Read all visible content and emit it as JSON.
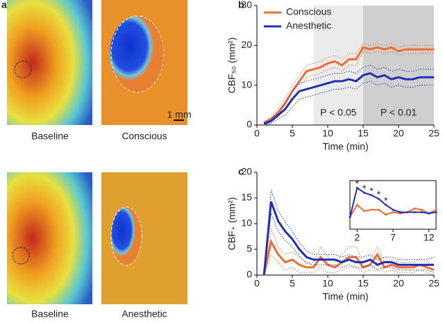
{
  "images": {
    "panel_label": "a",
    "labels": [
      "Baseline",
      "Conscious",
      "Baseline",
      "Anesthetic"
    ],
    "scale_bar": "1 mm"
  },
  "chart_data": [
    {
      "type": "line",
      "panel_label": "b",
      "xlabel": "Time (min)",
      "ylabel": "CBF₅₀ (mm²)",
      "xlim": [
        0,
        25
      ],
      "ylim": [
        0,
        30
      ],
      "xticks": [
        0,
        5,
        10,
        15,
        20,
        25
      ],
      "yticks": [
        0,
        10,
        20,
        30
      ],
      "legend": "upper left",
      "shaded_regions": [
        {
          "xlim": [
            8,
            15
          ],
          "color": "#ebebeb"
        },
        {
          "xlim": [
            15,
            25
          ],
          "color": "#cfcfcf"
        }
      ],
      "annotations": [
        {
          "x": 11.5,
          "y": 3,
          "text": "P < 0.05"
        },
        {
          "x": 20,
          "y": 3,
          "text": "P < 0.01"
        }
      ],
      "x": [
        1,
        2,
        3,
        4,
        5,
        6,
        7,
        8,
        9,
        10,
        11,
        12,
        13,
        14,
        15,
        16,
        17,
        18,
        19,
        20,
        21,
        22,
        23,
        24,
        25
      ],
      "series": [
        {
          "name": "Conscious",
          "color": "#f26b2f",
          "values": [
            0.5,
            1.5,
            3,
            5.5,
            8.5,
            11,
            13.5,
            14,
            14.5,
            15.5,
            16,
            15,
            16.5,
            16.5,
            19.5,
            19,
            19.5,
            19,
            19.5,
            18.5,
            19,
            19,
            19,
            19,
            19
          ],
          "error": [
            0.3,
            0.6,
            1,
            1.3,
            1.5,
            1.5,
            1.5,
            1.5,
            1.5,
            1.5,
            1.5,
            1.5,
            1.5,
            1.5,
            1,
            1,
            1,
            1,
            1,
            1,
            1,
            1,
            1,
            1,
            1
          ]
        },
        {
          "name": "Anesthetic",
          "color": "#1f2fb5",
          "values": [
            0.3,
            1,
            2.5,
            4,
            6.5,
            8.5,
            9,
            9.5,
            10,
            10.5,
            11,
            11,
            11.5,
            11,
            12.5,
            13,
            12,
            12.5,
            11.5,
            12,
            11.5,
            11.5,
            12,
            12,
            12
          ],
          "error": [
            0.3,
            0.6,
            1,
            1.5,
            2,
            2,
            2,
            2,
            2,
            2,
            2,
            2,
            2,
            2,
            2,
            2,
            2,
            2,
            2,
            2,
            2,
            2,
            2,
            2,
            2
          ]
        }
      ]
    },
    {
      "type": "line",
      "panel_label": "c",
      "xlabel": "Time (min)",
      "ylabel": "CBF₊ (mm²)",
      "xlim": [
        0,
        25
      ],
      "ylim": [
        0,
        20
      ],
      "xticks": [
        0,
        5,
        10,
        15,
        20,
        25
      ],
      "yticks": [
        0,
        5,
        10,
        15,
        20
      ],
      "x": [
        1,
        2,
        3,
        4,
        5,
        6,
        7,
        8,
        9,
        10,
        11,
        12,
        13,
        14,
        15,
        16,
        17,
        18,
        19,
        20,
        21,
        22,
        23,
        24,
        25
      ],
      "series": [
        {
          "name": "Conscious",
          "color": "#f26b2f",
          "values": [
            0,
            6.5,
            4,
            2.5,
            3,
            2,
            1.5,
            1.5,
            3.5,
            2,
            1.5,
            2.5,
            3.5,
            3.5,
            1.5,
            2,
            4,
            1.5,
            2,
            1.5,
            1.5,
            1.5,
            2,
            1.5,
            1
          ],
          "error": [
            0,
            2.5,
            1.5,
            1.5,
            1.5,
            1.5,
            1,
            1,
            2,
            1.5,
            1,
            1.5,
            2,
            2,
            1,
            1,
            1.5,
            1,
            1,
            1,
            1,
            1,
            1,
            1,
            1
          ]
        },
        {
          "name": "Anesthetic",
          "color": "#1f2fb5",
          "values": [
            0,
            14.3,
            10.5,
            8.5,
            7,
            5,
            3.5,
            3,
            3,
            3,
            3,
            2.5,
            3,
            2.5,
            2.5,
            3,
            2,
            2.5,
            2.5,
            2,
            2,
            2,
            2,
            2,
            2
          ],
          "error": [
            0,
            2.3,
            2,
            1.8,
            1.5,
            1.3,
            1.2,
            1,
            1,
            1,
            1,
            1,
            1,
            1,
            1,
            1,
            1,
            1,
            1,
            1,
            1,
            1,
            1,
            1,
            1.5
          ]
        }
      ]
    },
    {
      "type": "line",
      "xlim": [
        1,
        13
      ],
      "ylim": [
        0,
        20
      ],
      "xticks": [
        2,
        7,
        12
      ],
      "annotations": [
        {
          "x": 2,
          "y": 18.5,
          "text": "*"
        },
        {
          "x": 3,
          "y": 16.5,
          "text": "*"
        },
        {
          "x": 4,
          "y": 15.5,
          "text": "*"
        },
        {
          "x": 5,
          "y": 14,
          "text": "*"
        },
        {
          "x": 6,
          "y": 11.5,
          "text": "*"
        }
      ],
      "x": [
        1,
        2,
        3,
        4,
        5,
        6,
        7,
        8,
        9,
        10,
        11,
        12,
        13
      ],
      "series": [
        {
          "name": null,
          "color": "#f26b2f",
          "values": [
            5,
            10,
            7.5,
            8,
            8,
            6,
            7,
            6.5,
            7,
            8.5,
            8,
            6.5,
            8
          ]
        },
        {
          "name": null,
          "color": "#1f2fb5",
          "values": [
            5,
            17,
            15,
            14,
            12.5,
            10,
            8,
            7,
            7,
            7,
            7,
            6.5,
            7
          ]
        }
      ]
    }
  ]
}
